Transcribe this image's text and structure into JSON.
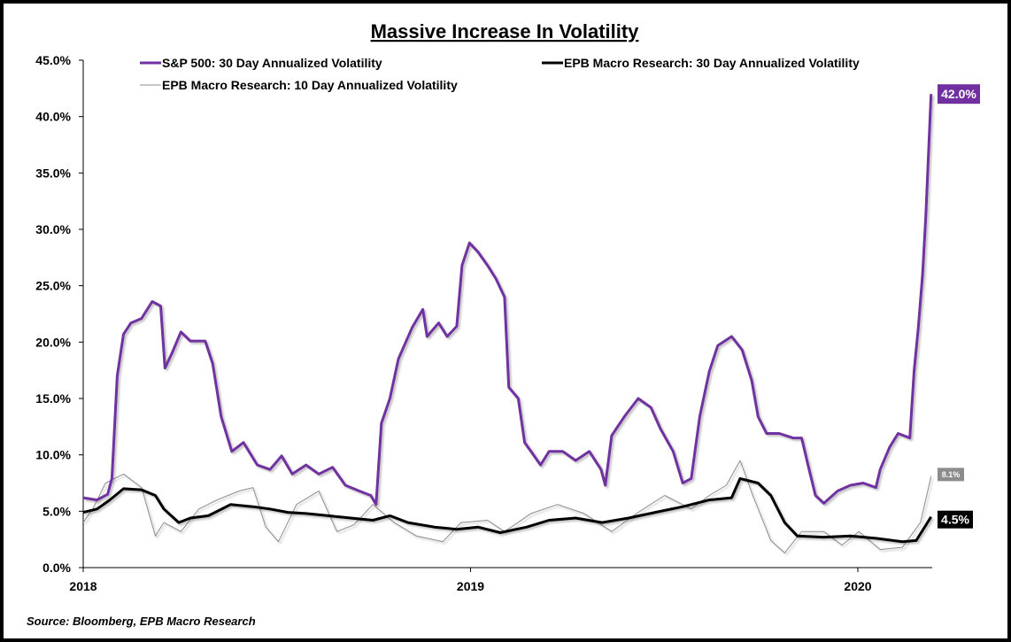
{
  "chart_data": {
    "type": "line",
    "title": "Massive Increase In Volatility",
    "source": "Source: Bloomberg, EPB Macro Research",
    "xlabel": "",
    "ylabel": "",
    "ylim": [
      0,
      45
    ],
    "yticks": [
      "0.0%",
      "5.0%",
      "10.0%",
      "15.0%",
      "20.0%",
      "25.0%",
      "30.0%",
      "35.0%",
      "40.0%",
      "45.0%"
    ],
    "xticks": [
      {
        "label": "2018",
        "date": "2018-01-01"
      },
      {
        "label": "2019",
        "date": "2019-01-01"
      },
      {
        "label": "2020",
        "date": "2020-01-01"
      }
    ],
    "grid": false,
    "legend_placement": "top",
    "series": [
      {
        "name": "S&P 500: 30 Day Annualized Volatility",
        "color": "#7030A0",
        "end_label": "42.0%",
        "x": [
          "2018-01-01",
          "2018-01-14",
          "2018-01-24",
          "2018-01-28",
          "2018-02-02",
          "2018-02-08",
          "2018-02-15",
          "2018-02-25",
          "2018-03-07",
          "2018-03-15",
          "2018-03-19",
          "2018-03-26",
          "2018-04-03",
          "2018-04-12",
          "2018-04-26",
          "2018-05-03",
          "2018-05-11",
          "2018-05-21",
          "2018-06-01",
          "2018-06-14",
          "2018-06-26",
          "2018-07-07",
          "2018-07-17",
          "2018-07-30",
          "2018-08-11",
          "2018-08-24",
          "2018-09-05",
          "2018-09-18",
          "2018-09-29",
          "2018-10-04",
          "2018-10-09",
          "2018-10-17",
          "2018-10-25",
          "2018-11-07",
          "2018-11-17",
          "2018-11-21",
          "2018-12-02",
          "2018-12-10",
          "2018-12-19",
          "2018-12-24",
          "2018-12-31",
          "2019-01-08",
          "2019-01-17",
          "2019-01-25",
          "2019-02-02",
          "2019-02-06",
          "2019-02-15",
          "2019-02-21",
          "2019-02-27",
          "2019-03-08",
          "2019-03-16",
          "2019-03-29",
          "2019-04-10",
          "2019-04-23",
          "2019-05-04",
          "2019-05-08",
          "2019-05-14",
          "2019-05-26",
          "2019-06-08",
          "2019-06-20",
          "2019-06-29",
          "2019-07-11",
          "2019-07-20",
          "2019-07-28",
          "2019-08-05",
          "2019-08-14",
          "2019-08-22",
          "2019-09-04",
          "2019-09-14",
          "2019-09-23",
          "2019-09-29",
          "2019-10-07",
          "2019-10-19",
          "2019-11-01",
          "2019-11-09",
          "2019-11-15",
          "2019-11-22",
          "2019-11-30",
          "2019-12-13",
          "2019-12-25",
          "2020-01-06",
          "2020-01-18",
          "2020-01-22",
          "2020-01-31",
          "2020-02-08",
          "2020-02-19",
          "2020-02-23",
          "2020-02-27",
          "2020-03-02",
          "2020-03-05",
          "2020-03-10"
        ],
        "values": [
          6.2,
          6.0,
          6.5,
          7.9,
          17.0,
          20.7,
          21.7,
          22.1,
          23.6,
          23.2,
          17.7,
          19.1,
          20.9,
          20.1,
          20.1,
          18.1,
          13.4,
          10.3,
          11.1,
          9.1,
          8.7,
          9.9,
          8.3,
          9.1,
          8.3,
          8.9,
          7.3,
          6.8,
          6.4,
          5.6,
          12.8,
          15.0,
          18.5,
          21.3,
          22.9,
          20.5,
          21.7,
          20.5,
          21.4,
          26.8,
          28.8,
          28.0,
          26.8,
          25.6,
          24.0,
          16.0,
          15.0,
          11.1,
          10.3,
          9.1,
          10.3,
          10.3,
          9.5,
          10.3,
          8.7,
          7.3,
          11.7,
          13.4,
          15.0,
          14.2,
          12.3,
          10.3,
          7.5,
          7.9,
          13.4,
          17.4,
          19.7,
          20.5,
          19.3,
          16.6,
          13.4,
          11.9,
          11.9,
          11.5,
          11.5,
          9.1,
          6.4,
          5.7,
          6.8,
          7.3,
          7.5,
          7.1,
          8.7,
          10.7,
          11.9,
          11.5,
          17.4,
          21.3,
          26.0,
          31.1,
          42.0
        ]
      },
      {
        "name": "EPB Macro Research: 30 Day Annualized Volatility",
        "color": "#000000",
        "end_label": "4.5%",
        "x": [
          "2018-01-01",
          "2018-01-14",
          "2018-01-26",
          "2018-02-08",
          "2018-02-25",
          "2018-03-10",
          "2018-03-18",
          "2018-04-01",
          "2018-04-12",
          "2018-04-29",
          "2018-05-20",
          "2018-06-10",
          "2018-06-26",
          "2018-07-13",
          "2018-07-30",
          "2018-08-20",
          "2018-09-10",
          "2018-10-01",
          "2018-10-17",
          "2018-11-03",
          "2018-11-28",
          "2018-12-19",
          "2019-01-08",
          "2019-01-29",
          "2019-02-23",
          "2019-03-16",
          "2019-04-10",
          "2019-05-05",
          "2019-05-30",
          "2019-06-24",
          "2019-07-20",
          "2019-08-14",
          "2019-09-04",
          "2019-09-12",
          "2019-09-29",
          "2019-10-11",
          "2019-10-24",
          "2019-11-05",
          "2019-11-30",
          "2019-12-25",
          "2020-01-18",
          "2020-02-12",
          "2020-02-25",
          "2020-03-10"
        ],
        "values": [
          4.9,
          5.2,
          6.0,
          7.0,
          6.9,
          6.4,
          5.2,
          4.0,
          4.4,
          4.6,
          5.6,
          5.4,
          5.2,
          4.9,
          4.8,
          4.6,
          4.4,
          4.2,
          4.6,
          4.0,
          3.6,
          3.4,
          3.6,
          3.1,
          3.6,
          4.2,
          4.4,
          4.0,
          4.4,
          4.9,
          5.4,
          6.0,
          6.2,
          7.9,
          7.5,
          6.4,
          4.0,
          2.8,
          2.7,
          2.8,
          2.6,
          2.3,
          2.4,
          4.5
        ]
      },
      {
        "name": "EPB Macro Research: 10 Day Annualized Volatility",
        "color": "#A6A6A6",
        "end_label": "8.1%",
        "x": [
          "2018-01-01",
          "2018-01-10",
          "2018-01-22",
          "2018-02-08",
          "2018-02-25",
          "2018-03-10",
          "2018-03-18",
          "2018-04-03",
          "2018-04-20",
          "2018-05-07",
          "2018-05-28",
          "2018-06-10",
          "2018-06-22",
          "2018-07-04",
          "2018-07-21",
          "2018-08-11",
          "2018-08-28",
          "2018-09-13",
          "2018-10-01",
          "2018-10-21",
          "2018-11-11",
          "2018-12-06",
          "2018-12-23",
          "2019-01-17",
          "2019-02-02",
          "2019-02-27",
          "2019-03-24",
          "2019-04-18",
          "2019-05-14",
          "2019-06-08",
          "2019-07-03",
          "2019-07-28",
          "2019-08-14",
          "2019-08-30",
          "2019-09-12",
          "2019-09-24",
          "2019-10-11",
          "2019-10-24",
          "2019-11-09",
          "2019-11-30",
          "2019-12-17",
          "2020-01-02",
          "2020-01-22",
          "2020-02-12",
          "2020-02-29",
          "2020-03-10"
        ],
        "values": [
          4.0,
          5.2,
          7.5,
          8.3,
          7.1,
          2.8,
          4.0,
          3.2,
          5.2,
          6.0,
          6.8,
          7.1,
          3.6,
          2.3,
          5.6,
          6.8,
          3.2,
          3.8,
          5.6,
          4.0,
          2.8,
          2.3,
          4.0,
          4.2,
          3.2,
          4.8,
          5.6,
          4.8,
          3.2,
          4.9,
          6.4,
          5.2,
          6.4,
          7.3,
          9.5,
          6.4,
          2.4,
          1.3,
          3.2,
          3.2,
          2.0,
          3.2,
          1.6,
          1.8,
          4.0,
          8.1
        ]
      }
    ]
  }
}
